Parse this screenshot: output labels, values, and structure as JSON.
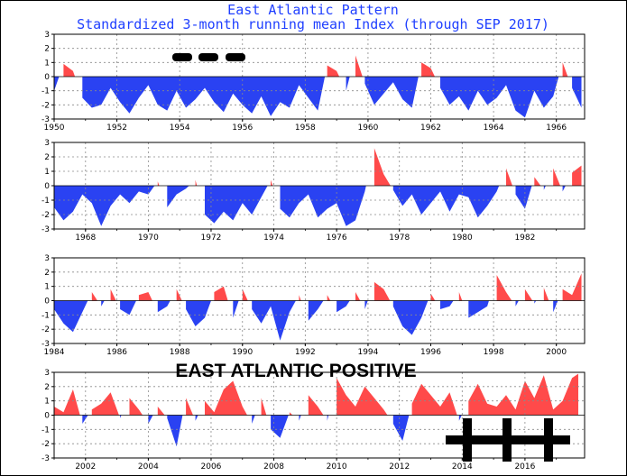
{
  "chart_data": {
    "type": "area",
    "title": "East Atlantic Pattern",
    "subtitle": "Standardized 3-month running mean Index (through SEP 2017)",
    "ylim": [
      -3,
      3
    ],
    "y_ticks": [
      3,
      2,
      1,
      0,
      -1,
      -2,
      -3
    ],
    "grid": true,
    "colors": {
      "positive": "#ff4a4a",
      "negative": "#2a42f2",
      "title": "#1f3fff"
    },
    "panels": [
      {
        "xlim": [
          1950,
          1966.9
        ],
        "x_ticks": [
          "1950",
          "1952",
          "1954",
          "1956",
          "1958",
          "1960",
          "1962",
          "1964",
          "1966"
        ],
        "series": {
          "x": [
            1950.0,
            1950.3,
            1950.6,
            1950.9,
            1951.2,
            1951.5,
            1951.8,
            1952.1,
            1952.4,
            1952.7,
            1953.0,
            1953.3,
            1953.6,
            1953.9,
            1954.2,
            1954.5,
            1954.8,
            1955.1,
            1955.4,
            1955.7,
            1956.0,
            1956.3,
            1956.6,
            1956.9,
            1957.2,
            1957.5,
            1957.8,
            1958.1,
            1958.4,
            1958.7,
            1959.0,
            1959.3,
            1959.6,
            1959.9,
            1960.2,
            1960.5,
            1960.8,
            1961.1,
            1961.4,
            1961.7,
            1962.0,
            1962.3,
            1962.6,
            1962.9,
            1963.2,
            1963.5,
            1963.8,
            1964.1,
            1964.4,
            1964.7,
            1965.0,
            1965.3,
            1965.6,
            1965.9,
            1966.2,
            1966.5,
            1966.8
          ],
          "y": [
            -1.0,
            0.9,
            0.4,
            -1.5,
            -2.2,
            -2.0,
            -0.8,
            -1.8,
            -2.6,
            -1.5,
            -0.6,
            -2.0,
            -2.4,
            -1.0,
            -2.2,
            -1.6,
            -0.8,
            -1.8,
            -2.5,
            -1.2,
            -2.0,
            -2.6,
            -1.4,
            -2.8,
            -1.8,
            -2.2,
            -0.6,
            -1.5,
            -2.4,
            0.8,
            0.4,
            -1.0,
            1.5,
            -0.5,
            -2.0,
            -1.2,
            -0.4,
            -1.6,
            -2.2,
            1.0,
            0.6,
            -0.8,
            -2.0,
            -1.4,
            -2.4,
            -1.0,
            -2.0,
            -1.5,
            -0.6,
            -2.4,
            -2.9,
            -1.0,
            -2.2,
            -1.4,
            1.0,
            -0.8,
            -2.2
          ]
        }
      },
      {
        "xlim": [
          1967,
          1983.9
        ],
        "x_ticks": [
          "1968",
          "1970",
          "1972",
          "1974",
          "1976",
          "1978",
          "1980",
          "1982"
        ],
        "series": {
          "x": [
            1967.0,
            1967.3,
            1967.6,
            1967.9,
            1968.2,
            1968.5,
            1968.8,
            1969.1,
            1969.4,
            1969.7,
            1970.0,
            1970.3,
            1970.6,
            1970.9,
            1971.2,
            1971.5,
            1971.8,
            1972.1,
            1972.4,
            1972.7,
            1973.0,
            1973.3,
            1973.6,
            1973.9,
            1974.2,
            1974.5,
            1974.8,
            1975.1,
            1975.4,
            1975.7,
            1976.0,
            1976.3,
            1976.6,
            1976.9,
            1977.2,
            1977.5,
            1977.8,
            1978.1,
            1978.4,
            1978.7,
            1979.0,
            1979.3,
            1979.6,
            1979.9,
            1980.2,
            1980.5,
            1980.8,
            1981.1,
            1981.4,
            1981.7,
            1982.0,
            1982.3,
            1982.6,
            1982.9,
            1983.2,
            1983.5,
            1983.8
          ],
          "y": [
            -1.5,
            -2.4,
            -1.8,
            -0.6,
            -1.2,
            -2.8,
            -1.4,
            -0.6,
            -1.2,
            -0.4,
            -0.6,
            0.3,
            -1.5,
            -0.6,
            -0.2,
            0.4,
            -2.0,
            -2.6,
            -1.8,
            -2.4,
            -1.2,
            -2.0,
            -0.8,
            0.4,
            -1.6,
            -2.2,
            -1.2,
            -0.6,
            -2.2,
            -1.6,
            -1.2,
            -2.8,
            -2.4,
            -0.4,
            2.6,
            0.8,
            -0.3,
            -1.4,
            -0.6,
            -2.0,
            -1.2,
            -0.4,
            -1.8,
            -0.6,
            -0.8,
            -2.2,
            -1.4,
            -0.4,
            1.2,
            -0.6,
            -1.6,
            0.6,
            -0.3,
            1.2,
            -0.4,
            0.9,
            1.4
          ]
        }
      },
      {
        "xlim": [
          1984,
          2000.9
        ],
        "x_ticks": [
          "1984",
          "1986",
          "1988",
          "1990",
          "1992",
          "1994",
          "1996",
          "1998",
          "2000"
        ],
        "series": {
          "x": [
            1984.0,
            1984.3,
            1984.6,
            1984.9,
            1985.2,
            1985.5,
            1985.8,
            1986.1,
            1986.4,
            1986.7,
            1987.0,
            1987.3,
            1987.6,
            1987.9,
            1988.2,
            1988.5,
            1988.8,
            1989.1,
            1989.4,
            1989.7,
            1990.0,
            1990.3,
            1990.6,
            1990.9,
            1991.2,
            1991.5,
            1991.8,
            1992.1,
            1992.4,
            1992.7,
            1993.0,
            1993.3,
            1993.6,
            1993.9,
            1994.2,
            1994.5,
            1994.8,
            1995.1,
            1995.4,
            1995.7,
            1996.0,
            1996.3,
            1996.6,
            1996.9,
            1997.2,
            1997.5,
            1997.8,
            1998.1,
            1998.4,
            1998.7,
            1999.0,
            1999.3,
            1999.6,
            1999.9,
            2000.2,
            2000.5,
            2000.8
          ],
          "y": [
            -0.6,
            -1.6,
            -2.2,
            -0.8,
            0.6,
            -0.4,
            0.8,
            -0.6,
            -1.0,
            0.4,
            0.6,
            -0.8,
            -0.4,
            0.8,
            -0.6,
            -1.8,
            -1.2,
            0.6,
            1.0,
            -1.2,
            0.8,
            -0.6,
            -1.6,
            -0.4,
            -2.8,
            -0.8,
            0.4,
            -1.4,
            -0.6,
            0.4,
            -0.8,
            -0.4,
            0.6,
            -0.6,
            1.3,
            0.8,
            -0.4,
            -1.8,
            -2.4,
            -1.2,
            0.5,
            -0.6,
            -0.4,
            0.6,
            -1.2,
            -0.8,
            -0.4,
            1.8,
            0.6,
            -0.4,
            0.8,
            -0.2,
            0.9,
            -0.8,
            0.8,
            0.4,
            1.9
          ]
        }
      },
      {
        "xlim": [
          2001,
          2017.9
        ],
        "x_ticks": [
          "2002",
          "2004",
          "2006",
          "2008",
          "2010",
          "2012",
          "2014",
          "2016"
        ],
        "series": {
          "x": [
            2001.0,
            2001.3,
            2001.6,
            2001.9,
            2002.2,
            2002.5,
            2002.8,
            2003.1,
            2003.4,
            2003.7,
            2004.0,
            2004.3,
            2004.6,
            2004.9,
            2005.2,
            2005.5,
            2005.8,
            2006.1,
            2006.4,
            2006.7,
            2007.0,
            2007.3,
            2007.6,
            2007.9,
            2008.2,
            2008.5,
            2008.8,
            2009.1,
            2009.4,
            2009.7,
            2010.0,
            2010.3,
            2010.6,
            2010.9,
            2011.2,
            2011.5,
            2011.8,
            2012.1,
            2012.4,
            2012.7,
            2013.0,
            2013.3,
            2013.6,
            2013.9,
            2014.2,
            2014.5,
            2014.8,
            2015.1,
            2015.4,
            2015.7,
            2016.0,
            2016.3,
            2016.6,
            2016.9,
            2017.2,
            2017.5,
            2017.7
          ],
          "y": [
            0.6,
            0.2,
            1.8,
            -0.6,
            0.4,
            0.8,
            1.6,
            -0.2,
            1.2,
            0.4,
            -0.6,
            0.6,
            -0.2,
            -2.2,
            1.2,
            -0.4,
            1.0,
            0.2,
            1.8,
            2.4,
            0.6,
            -0.6,
            1.2,
            -1.0,
            -1.6,
            0.2,
            -0.4,
            1.4,
            0.6,
            -0.4,
            2.6,
            1.4,
            0.6,
            2.0,
            1.2,
            0.4,
            -0.6,
            -1.8,
            0.8,
            2.2,
            1.4,
            0.6,
            1.6,
            -0.4,
            1.0,
            2.2,
            0.8,
            0.6,
            1.4,
            0.4,
            2.4,
            1.2,
            2.8,
            0.4,
            1.0,
            2.6,
            2.9
          ]
        }
      }
    ]
  },
  "annotations": {
    "banner": "EAST ATLANTIC POSITIVE",
    "positive_marks": "+++"
  }
}
